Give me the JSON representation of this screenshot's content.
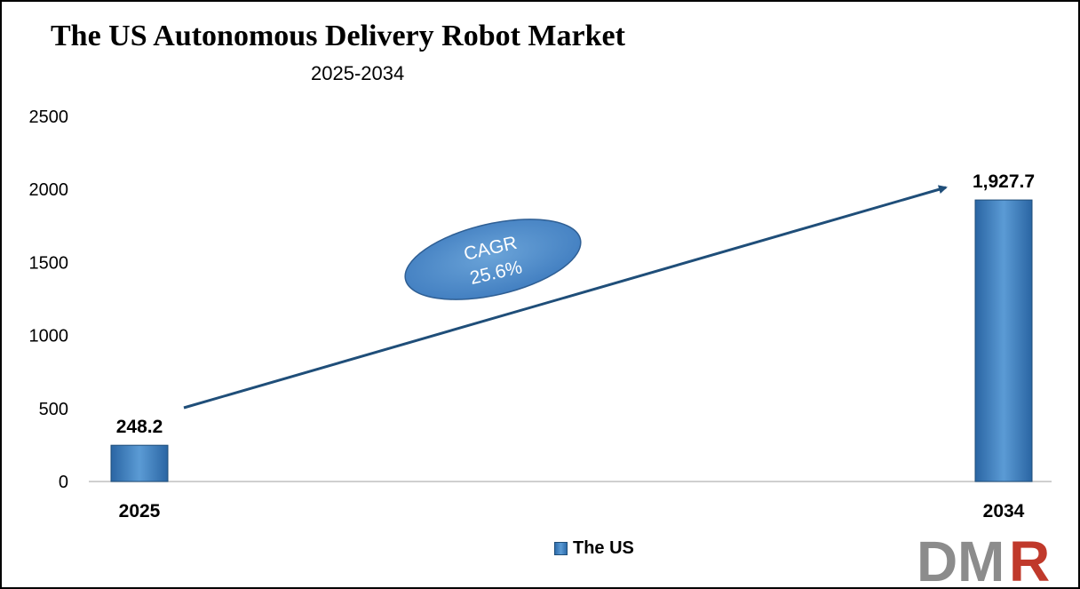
{
  "chart_data": {
    "type": "bar",
    "title": "The US Autonomous Delivery Robot Market",
    "subtitle": "2025-2034",
    "categories": [
      "2025",
      "2034"
    ],
    "series": [
      {
        "name": "The US",
        "values": [
          248.2,
          1927.7
        ],
        "labels": [
          "248.2",
          "1,927.7"
        ],
        "color": "#3a7dc2"
      }
    ],
    "ylim": [
      0,
      2500
    ],
    "yticks": [
      0,
      500,
      1000,
      1500,
      2000,
      2500
    ],
    "xlabel": "",
    "ylabel": "",
    "grid": false,
    "legend_position": "bottom",
    "annotation": {
      "label": "CAGR",
      "value": "25.6%"
    }
  },
  "logo": {
    "text": "DMR",
    "colors": {
      "dm": "#8c8c8c",
      "r": "#c0392b"
    }
  }
}
